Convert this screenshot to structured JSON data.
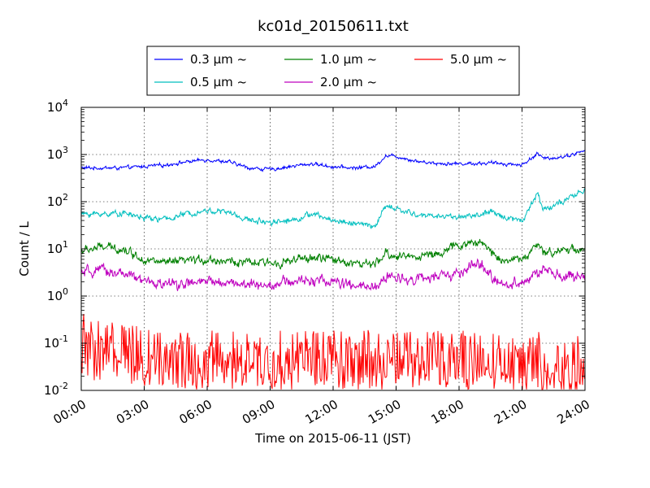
{
  "chart_data": {
    "type": "line",
    "title": "kc01d_20150611.txt",
    "xlabel": "Time on 2015-06-11 (JST)",
    "ylabel": "Count / L",
    "yscale": "log",
    "ylim": [
      0.01,
      10000
    ],
    "xlim": [
      "00:00",
      "24:00"
    ],
    "grid": true,
    "legend_position": "top-center, above plot",
    "x_ticks": [
      "00:00",
      "03:00",
      "06:00",
      "09:00",
      "12:00",
      "15:00",
      "18:00",
      "21:00",
      "24:00"
    ],
    "y_ticks": [
      {
        "base": "10",
        "exp": "-2",
        "value": 0.01
      },
      {
        "base": "10",
        "exp": "-1",
        "value": 0.1
      },
      {
        "base": "10",
        "exp": "0",
        "value": 1
      },
      {
        "base": "10",
        "exp": "1",
        "value": 10
      },
      {
        "base": "10",
        "exp": "2",
        "value": 100
      },
      {
        "base": "10",
        "exp": "3",
        "value": 1000
      },
      {
        "base": "10",
        "exp": "4",
        "value": 10000
      }
    ],
    "x": [
      "00:00",
      "01:00",
      "02:00",
      "03:00",
      "04:00",
      "05:00",
      "06:00",
      "07:00",
      "08:00",
      "09:00",
      "10:00",
      "11:00",
      "12:00",
      "13:00",
      "14:00",
      "14:30",
      "15:00",
      "16:00",
      "17:00",
      "18:00",
      "19:00",
      "19:30",
      "20:00",
      "21:00",
      "21:45",
      "22:00",
      "23:00",
      "24:00"
    ],
    "series": [
      {
        "name": "0.3 µm ~",
        "color": "#0000ff",
        "noise": 0.05,
        "style": "smooth",
        "values": [
          520,
          520,
          520,
          560,
          600,
          700,
          780,
          700,
          520,
          480,
          560,
          640,
          550,
          520,
          560,
          950,
          920,
          720,
          650,
          640,
          650,
          660,
          650,
          600,
          1050,
          820,
          900,
          1200
        ]
      },
      {
        "name": "0.5 µm ~",
        "color": "#00bfbf",
        "noise": 0.08,
        "style": "smooth",
        "values": [
          55,
          55,
          58,
          45,
          42,
          55,
          65,
          60,
          40,
          38,
          40,
          55,
          40,
          35,
          30,
          80,
          70,
          52,
          50,
          48,
          52,
          60,
          50,
          40,
          150,
          70,
          100,
          180
        ]
      },
      {
        "name": "1.0 µm ~",
        "color": "#008000",
        "noise": 0.12,
        "style": "smooth",
        "values": [
          9,
          11,
          10,
          6,
          5,
          5.5,
          6,
          5.5,
          5,
          5,
          5.5,
          6.5,
          6,
          5,
          4.5,
          8,
          7,
          7,
          8,
          12,
          14,
          9,
          6,
          6,
          12,
          8,
          10,
          10
        ]
      },
      {
        "name": "2.0 µm ~",
        "color": "#bf00bf",
        "noise": 0.15,
        "style": "smooth",
        "values": [
          3,
          3.5,
          3,
          2,
          1.8,
          1.8,
          2,
          2,
          1.7,
          1.8,
          2,
          2.2,
          2,
          1.6,
          1.5,
          2.5,
          2.5,
          2.3,
          2.5,
          3,
          5,
          2.5,
          1.8,
          2,
          3,
          3.5,
          2.5,
          2.5
        ]
      },
      {
        "name": "5.0 µm ~",
        "color": "#ff0000",
        "noise": 0.35,
        "style": "spiky",
        "values": [
          0.12,
          0.08,
          0.07,
          0.06,
          0.06,
          0.05,
          0.05,
          0.05,
          0.05,
          0.05,
          0.05,
          0.05,
          0.06,
          0.05,
          0.05,
          0.05,
          0.05,
          0.05,
          0.05,
          0.05,
          0.05,
          0.05,
          0.05,
          0.05,
          0.05,
          0.04,
          0.04,
          0.04
        ]
      }
    ]
  }
}
